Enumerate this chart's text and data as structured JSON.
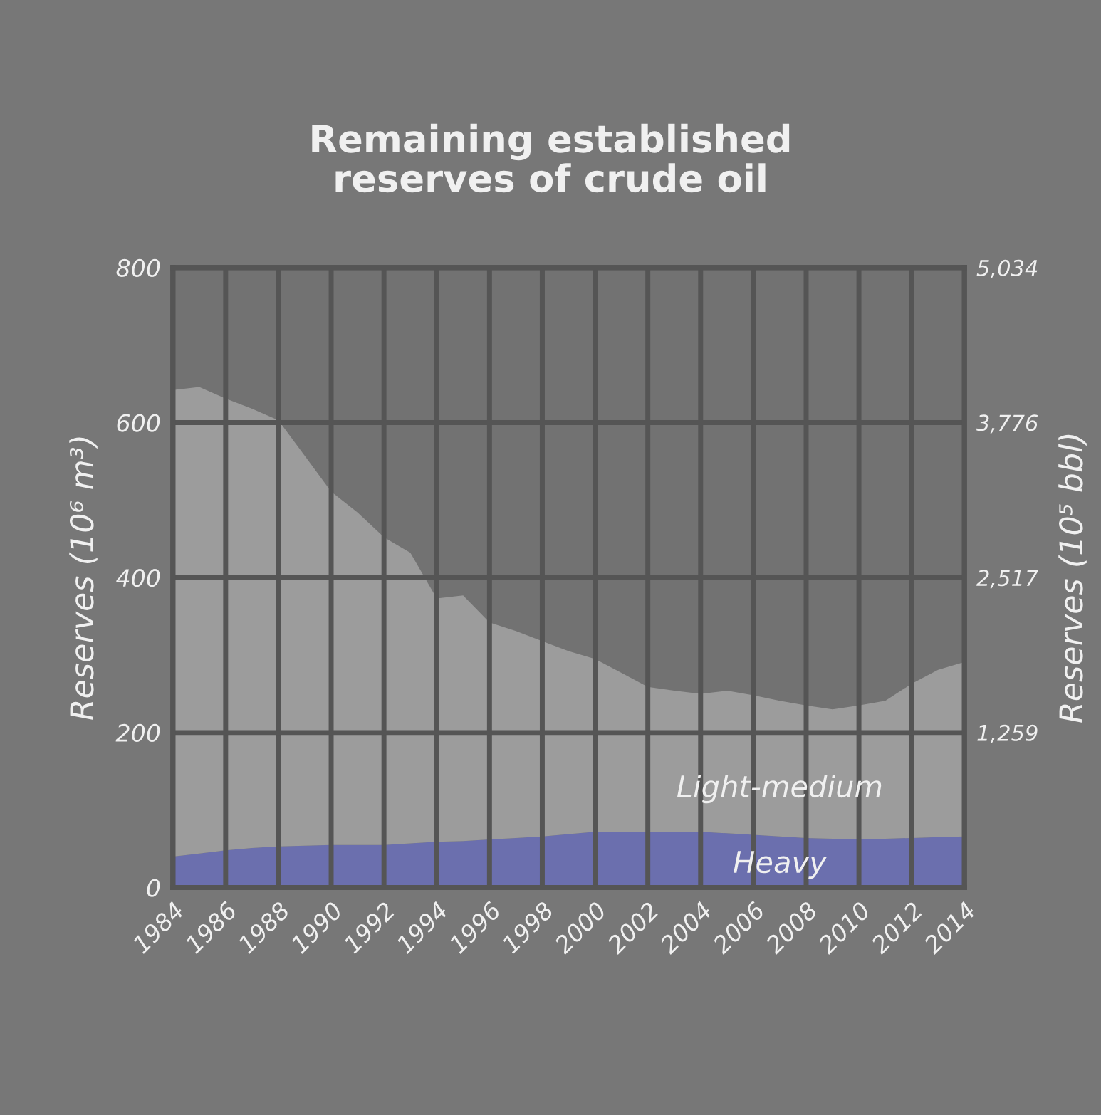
{
  "chart_data": {
    "type": "area",
    "stacked": true,
    "title": "Remaining established\nreserves of crude oil",
    "ylabel": "Reserves (10⁶ m³)",
    "y2label": "Reserves (10⁵ bbl)",
    "x": [
      1984,
      1985,
      1986,
      1987,
      1988,
      1989,
      1990,
      1991,
      1992,
      1993,
      1994,
      1995,
      1996,
      1997,
      1998,
      1999,
      2000,
      2001,
      2002,
      2003,
      2004,
      2005,
      2006,
      2007,
      2008,
      2009,
      2010,
      2011,
      2012,
      2013,
      2014
    ],
    "series": [
      {
        "name": "Heavy",
        "color": "#6b6fae",
        "values": [
          40,
          44,
          48,
          51,
          53,
          54,
          55,
          55,
          55,
          57,
          59,
          60,
          62,
          64,
          66,
          69,
          72,
          72,
          72,
          72,
          72,
          70,
          68,
          66,
          64,
          63,
          62,
          63,
          64,
          65,
          66
        ]
      },
      {
        "name": "Light-medium",
        "color": "#9c9c9c",
        "values": [
          602,
          602,
          583,
          567,
          550,
          503,
          456,
          429,
          397,
          375,
          314,
          317,
          280,
          267,
          252,
          236,
          223,
          205,
          187,
          182,
          178,
          184,
          180,
          175,
          171,
          167,
          173,
          178,
          199,
          216,
          225
        ]
      }
    ],
    "xlim": [
      1984,
      2014
    ],
    "xticks": [
      1984,
      1986,
      1988,
      1990,
      1992,
      1994,
      1996,
      1998,
      2000,
      2002,
      2004,
      2006,
      2008,
      2010,
      2012,
      2014
    ],
    "ylim": [
      0,
      800
    ],
    "yticks": [
      0,
      200,
      400,
      600,
      800
    ],
    "y2lim": [
      0,
      5034
    ],
    "y2ticks": [
      {
        "value": 1259,
        "label": "1,259"
      },
      {
        "value": 2517,
        "label": "2,517"
      },
      {
        "value": 3776,
        "label": "3,776"
      },
      {
        "value": 5034,
        "label": "5,034"
      }
    ],
    "grid": true,
    "legend": false
  }
}
